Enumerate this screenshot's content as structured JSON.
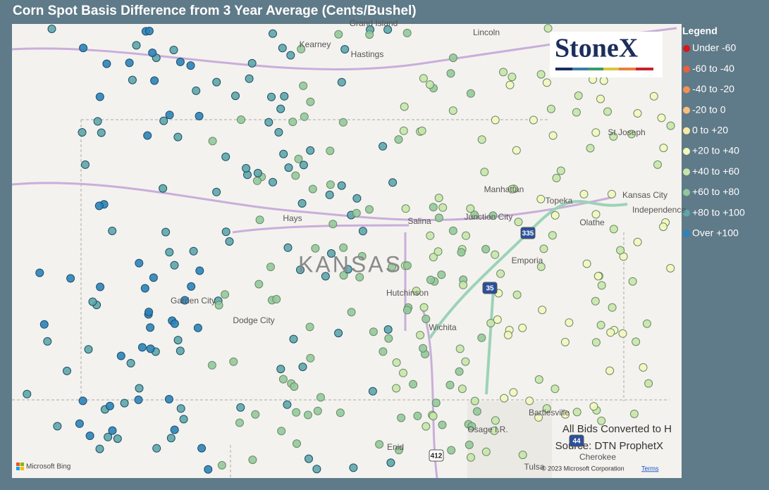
{
  "title": "Corn Spot Basis Difference from 3 Year Average (Cents/Bushel)",
  "legend": {
    "title": "Legend",
    "items": [
      {
        "label": "Under -60",
        "color": "#d7191c"
      },
      {
        "label": "-60 to -40",
        "color": "#e8603c"
      },
      {
        "label": "-40 to -20",
        "color": "#f59053"
      },
      {
        "label": "-20 to 0",
        "color": "#fdbe7a"
      },
      {
        "label": "0 to +20",
        "color": "#fee8a0"
      },
      {
        "label": "+20 to +40",
        "color": "#f4f7bb"
      },
      {
        "label": "+40 to +60",
        "color": "#c8e6a8"
      },
      {
        "label": "+60 to +80",
        "color": "#93c99a"
      },
      {
        "label": "+80 to +100",
        "color": "#5ea7a8"
      },
      {
        "label": "Over +100",
        "color": "#2b83ba"
      }
    ]
  },
  "map_labels": [
    "Grand Island",
    "Kearney",
    "Hastings",
    "Lincoln",
    "St Joseph",
    "Manhattan",
    "Topeka",
    "Kansas City",
    "Independence",
    "Junction City",
    "Salina",
    "Hays",
    "KANSAS",
    "Olathe",
    "Emporia",
    "Hutchinson",
    "Garden City",
    "Dodge City",
    "Wichita",
    "Bartlesville",
    "Osage I.R.",
    "Enid",
    "Tulsa",
    "Cherokee"
  ],
  "shields": [
    "335",
    "35",
    "412",
    "44"
  ],
  "logo": "StoneX",
  "notes": [
    "All Bids Converted to H",
    "Source: DTN ProphetX"
  ],
  "attribution": {
    "provider": "Microsoft Bing",
    "copyright": "© 2023 Microsoft Corporation",
    "terms": "Terms"
  }
}
